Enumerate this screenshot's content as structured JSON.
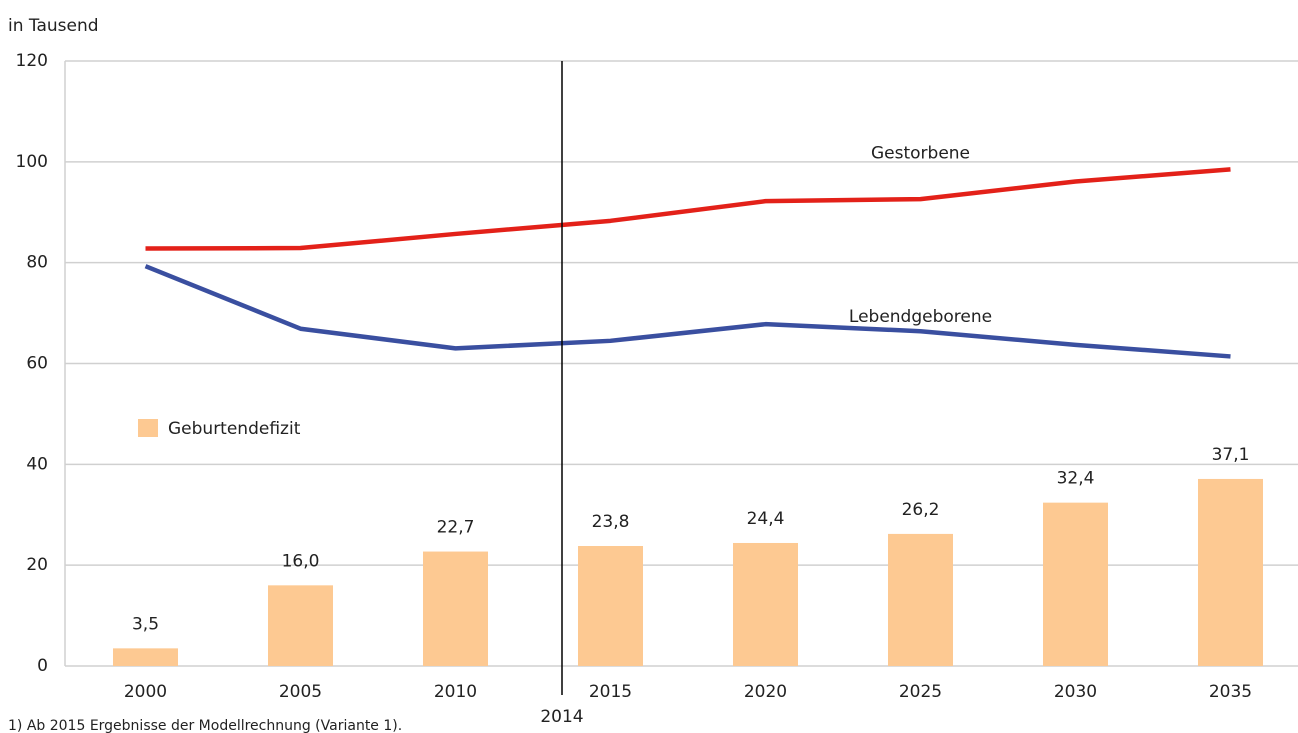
{
  "chart_data": {
    "type": "bar",
    "y_label": "in Tausend",
    "categories": [
      "2000",
      "2005",
      "2010",
      "2015",
      "2020",
      "2025",
      "2030",
      "2035"
    ],
    "series": [
      {
        "name": "Geburtendefizit",
        "type": "bar",
        "color": "#fdc992",
        "values": [
          3.5,
          16.0,
          22.7,
          23.8,
          24.4,
          26.2,
          32.4,
          37.1
        ],
        "value_labels": [
          "3,5",
          "16,0",
          "22,7",
          "23,8",
          "24,4",
          "26,2",
          "32,4",
          "37,1"
        ]
      },
      {
        "name": "Gestorbene",
        "type": "line",
        "color": "#e32119",
        "values": [
          82.8,
          82.9,
          85.7,
          88.3,
          92.2,
          92.6,
          96.1,
          98.5
        ]
      },
      {
        "name": "Lebendgeborene",
        "type": "line",
        "color": "#3a4fa0",
        "values": [
          79.3,
          66.9,
          63.0,
          64.5,
          67.8,
          66.4,
          63.7,
          61.4
        ]
      }
    ],
    "ylim": [
      0,
      120
    ],
    "yticks": [
      0,
      20,
      40,
      60,
      80,
      100,
      120
    ],
    "grid": true,
    "vline_label": "2014",
    "footnote": "1) Ab 2015 Ergebnisse der Modellrechnung (Variante 1)."
  }
}
